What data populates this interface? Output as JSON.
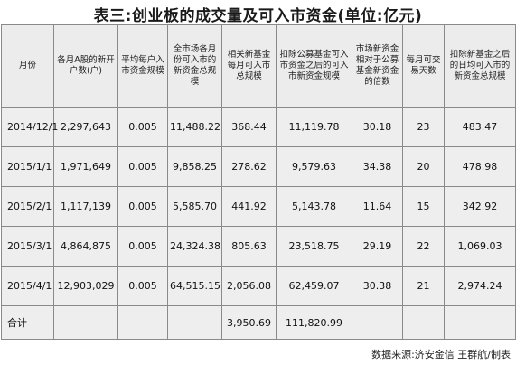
{
  "title": "表三:创业板的成交量及可入市资金(单位:亿元)",
  "columns": [
    "月份",
    "各月A股的新开户数(户)",
    "平均每户入市资金规模",
    "全市场各月份可入市的新资金总规模",
    "相关新基金每月可入市总规模",
    "扣除公募基金可入市资金之后的可入市新资金规模",
    "市场新资金相对于公募基金新资金的倍数",
    "每月可交易天数",
    "扣除新基金之后的日均可入市的新资金总规模"
  ],
  "rows": [
    [
      "2014/12/1",
      "2,297,643",
      "0.005",
      "11,488.22",
      "368.44",
      "11,119.78",
      "30.18",
      "23",
      "483.47"
    ],
    [
      "2015/1/1",
      "1,971,649",
      "0.005",
      "9,858.25",
      "278.62",
      "9,579.63",
      "34.38",
      "20",
      "478.98"
    ],
    [
      "2015/2/1",
      "1,117,139",
      "0.005",
      "5,585.70",
      "441.92",
      "5,143.78",
      "11.64",
      "15",
      "342.92"
    ],
    [
      "2015/3/1",
      "4,864,875",
      "0.005",
      "24,324.38",
      "805.63",
      "23,518.75",
      "29.19",
      "22",
      "1,069.03"
    ],
    [
      "2015/4/1",
      "12,903,029",
      "0.005",
      "64,515.15",
      "2,056.08",
      "62,459.07",
      "30.38",
      "21",
      "2,974.24"
    ]
  ],
  "total": [
    "合计",
    "",
    "",
    "",
    "3,950.69",
    "111,820.99",
    "",
    "",
    ""
  ],
  "source": "数据来源:济安金信  王群航/制表"
}
